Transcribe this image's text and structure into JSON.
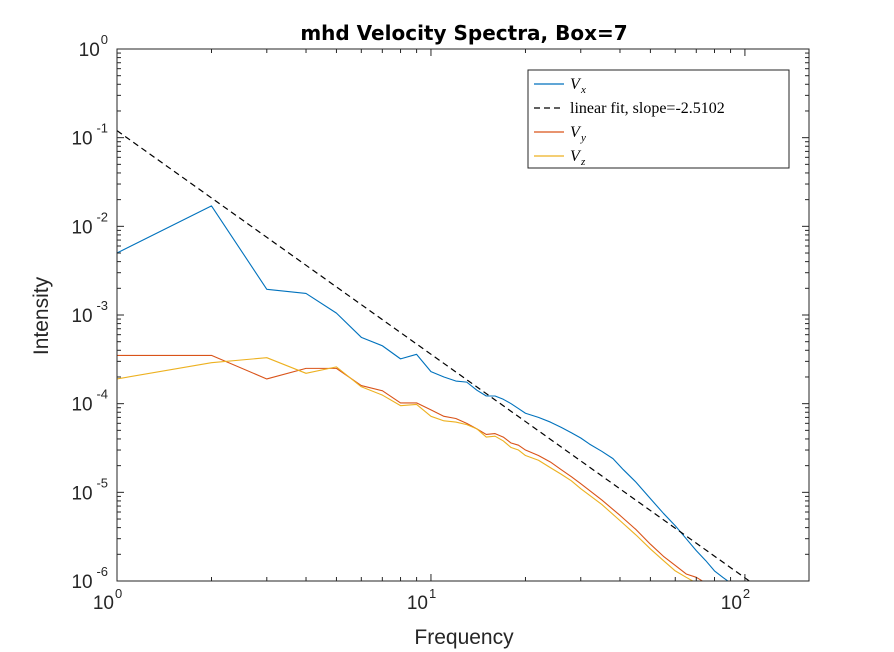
{
  "chart_data": {
    "type": "line",
    "title": "mhd Velocity Spectra, Box=7",
    "xlabel": "Frequency",
    "ylabel": "Intensity",
    "xscale": "log",
    "yscale": "log",
    "xlim": [
      1,
      160
    ],
    "ylim": [
      1e-06,
      1
    ],
    "x_ticks": [
      {
        "base": "10",
        "exp": "0",
        "value": 1
      },
      {
        "base": "10",
        "exp": "1",
        "value": 10
      },
      {
        "base": "10",
        "exp": "2",
        "value": 100
      }
    ],
    "y_ticks": [
      {
        "base": "10",
        "exp": "0",
        "value": 1
      },
      {
        "base": "10",
        "exp": "-1",
        "value": 0.1
      },
      {
        "base": "10",
        "exp": "-2",
        "value": 0.01
      },
      {
        "base": "10",
        "exp": "-3",
        "value": 0.001
      },
      {
        "base": "10",
        "exp": "-4",
        "value": 0.0001
      },
      {
        "base": "10",
        "exp": "-5",
        "value": 1e-05
      },
      {
        "base": "10",
        "exp": "-6",
        "value": 1e-06
      }
    ],
    "grid": false,
    "legend_position": "top-right",
    "legend": [
      {
        "main": "V",
        "sub": "x",
        "color": "#0072BD",
        "dash": false
      },
      {
        "main": "linear fit, slope=-2.5102",
        "sub": "",
        "color": "#000000",
        "dash": true
      },
      {
        "main": "V",
        "sub": "y",
        "color": "#D95319",
        "dash": false
      },
      {
        "main": "V",
        "sub": "z",
        "color": "#EDB120",
        "dash": false
      }
    ],
    "series": [
      {
        "key": "vx",
        "color": "#0072BD",
        "dash": false,
        "x": [
          1,
          2,
          3,
          4,
          5,
          6,
          7,
          8,
          9,
          10,
          11,
          12,
          13,
          14,
          15,
          16,
          17,
          18,
          19,
          20,
          22,
          24,
          26,
          28,
          30,
          32,
          35,
          38,
          41,
          45,
          50,
          55,
          60,
          65,
          70,
          75,
          80,
          85,
          90,
          95,
          100
        ],
        "y": [
          0.005,
          0.017,
          0.00195,
          0.00175,
          0.00105,
          0.00056,
          0.00045,
          0.00032,
          0.00036,
          0.00023,
          0.0002,
          0.00018,
          0.000175,
          0.000142,
          0.000122,
          0.000122,
          0.000112,
          0.0001,
          8.8e-05,
          7.8e-05,
          7e-05,
          6.2e-05,
          5.4e-05,
          4.7e-05,
          4.1e-05,
          3.5e-05,
          2.9e-05,
          2.4e-05,
          1.8e-05,
          1.3e-05,
          8.5e-06,
          5.8e-06,
          4.2e-06,
          3e-06,
          2.2e-06,
          1.7e-06,
          1.3e-06,
          1.1e-06,
          9.5e-07,
          8e-07,
          6.5e-07
        ]
      },
      {
        "key": "fit",
        "color": "#000000",
        "dash": true,
        "x": [
          1,
          105
        ],
        "y": [
          0.12,
          9.6e-07
        ]
      },
      {
        "key": "vy",
        "color": "#D95319",
        "dash": false,
        "x": [
          1,
          2,
          3,
          4,
          5,
          6,
          7,
          8,
          9,
          10,
          11,
          12,
          13,
          14,
          15,
          16,
          17,
          18,
          19,
          20,
          22,
          24,
          26,
          28,
          30,
          35,
          40,
          45,
          50,
          55,
          60,
          65,
          70,
          75
        ],
        "y": [
          0.00035,
          0.00035,
          0.00019,
          0.00025,
          0.00025,
          0.00016,
          0.00014,
          0.000102,
          0.000102,
          8.5e-05,
          7.2e-05,
          6.8e-05,
          6e-05,
          5.2e-05,
          4.5e-05,
          4.6e-05,
          4.2e-05,
          3.6e-05,
          3.4e-05,
          3e-05,
          2.6e-05,
          2.2e-05,
          1.8e-05,
          1.5e-05,
          1.25e-05,
          8.2e-06,
          5.5e-06,
          3.8e-06,
          2.6e-06,
          1.9e-06,
          1.5e-06,
          1.2e-06,
          1.1e-06,
          9.5e-07
        ]
      },
      {
        "key": "vz",
        "color": "#EDB120",
        "dash": false,
        "x": [
          1,
          2,
          3,
          4,
          5,
          6,
          7,
          8,
          9,
          10,
          11,
          12,
          13,
          14,
          15,
          16,
          17,
          18,
          19,
          20,
          22,
          24,
          26,
          28,
          30,
          35,
          40,
          45,
          50,
          55,
          60,
          65,
          70
        ],
        "y": [
          0.00019,
          0.00029,
          0.00033,
          0.00022,
          0.00026,
          0.000155,
          0.000125,
          9.5e-05,
          9.8e-05,
          7.2e-05,
          6.4e-05,
          6.2e-05,
          5.8e-05,
          5.2e-05,
          4.2e-05,
          4.3e-05,
          3.8e-05,
          3.2e-05,
          3e-05,
          2.6e-05,
          2.3e-05,
          1.9e-05,
          1.6e-05,
          1.35e-05,
          1.1e-05,
          7.3e-06,
          4.8e-06,
          3.3e-06,
          2.3e-06,
          1.7e-06,
          1.3e-06,
          1.1e-06,
          9.5e-07
        ]
      }
    ]
  }
}
